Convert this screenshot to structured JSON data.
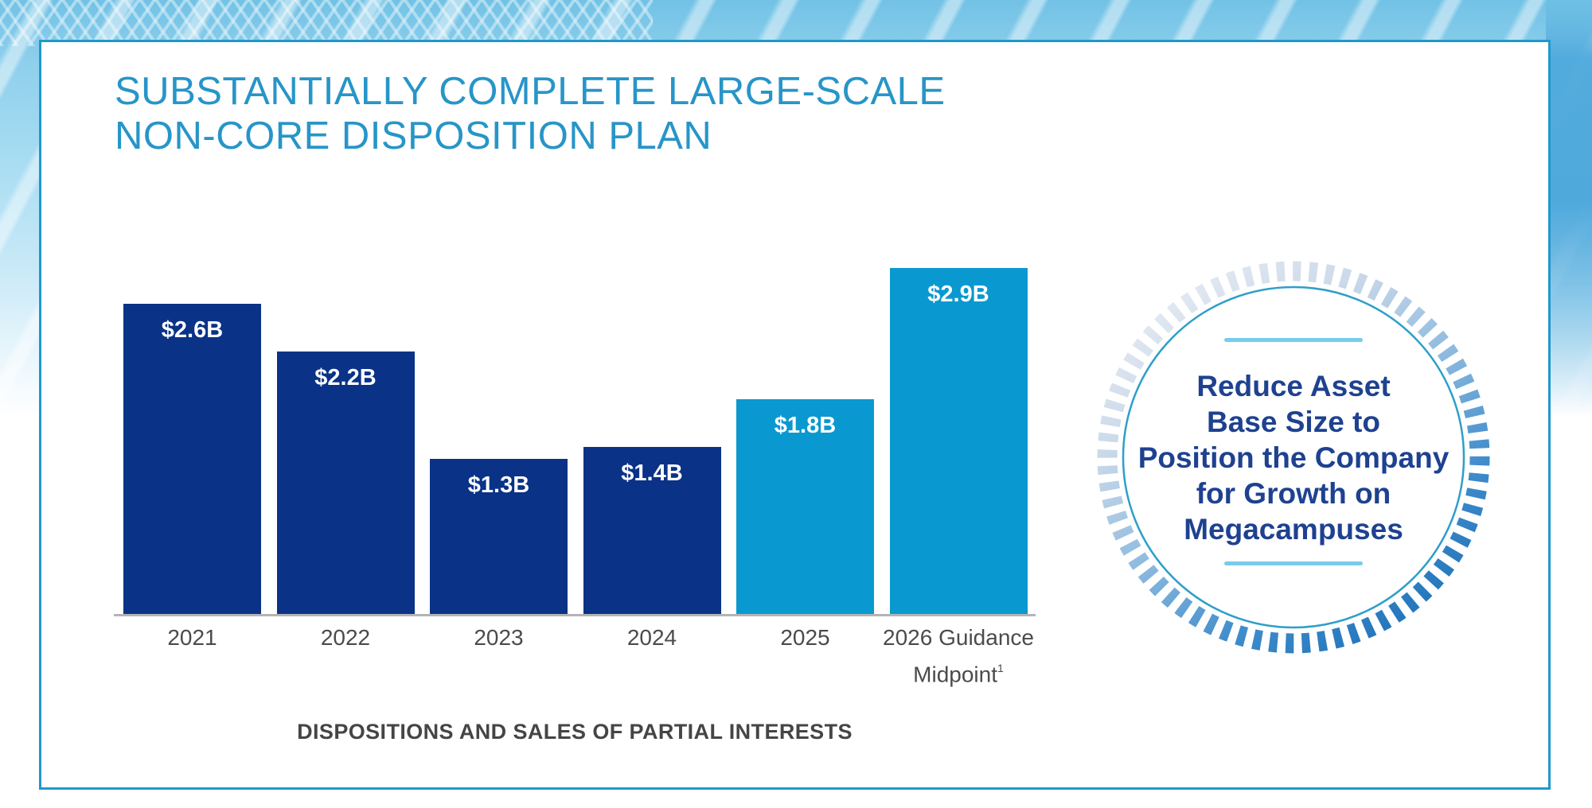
{
  "slide": {
    "title": {
      "line1": "SUBSTANTIALLY COMPLETE LARGE-SCALE",
      "line2": "NON-CORE DISPOSITION PLAN"
    },
    "caption": "DISPOSITIONS AND SALES OF PARTIAL INTERESTS"
  },
  "chart_data": {
    "type": "bar",
    "title": "",
    "xlabel": "DISPOSITIONS AND SALES OF PARTIAL INTERESTS",
    "ylabel": "",
    "ylim": [
      0,
      3.0
    ],
    "grid": false,
    "legend_position": "none",
    "categories": [
      {
        "lines": [
          "2021"
        ]
      },
      {
        "lines": [
          "2022"
        ]
      },
      {
        "lines": [
          "2023"
        ]
      },
      {
        "lines": [
          "2024"
        ]
      },
      {
        "lines": [
          "2025"
        ]
      },
      {
        "lines": [
          "2026 Guidance",
          "Midpoint"
        ],
        "footnote_sup": "1"
      }
    ],
    "values": [
      2.6,
      2.2,
      1.3,
      1.4,
      1.8,
      2.9
    ],
    "bar_labels": [
      "$2.6B",
      "$2.2B",
      "$1.3B",
      "$1.4B",
      "$1.8B",
      "$2.9B"
    ],
    "bar_colors": [
      "#0A3287",
      "#0A3287",
      "#0A3287",
      "#0A3287",
      "#0999D0",
      "#0999D0"
    ]
  },
  "callout": {
    "lines": [
      "Reduce Asset",
      "Base Size to",
      "Position the Company",
      "for Growth on",
      "Megacampuses"
    ]
  },
  "colors": {
    "navy_bar": "#0A3287",
    "sky_bar": "#0999D0",
    "title_blue": "#2795C8",
    "callout_navy": "#1E4190",
    "divider_blue": "#79CBEC",
    "card_border": "#2098CC",
    "axis_gray": "#B4B4B6",
    "label_gray": "#4B4B4D",
    "caption_gray": "#454547",
    "bar_label_white": "#FFFFFF",
    "ring_light": "#E8EDF3",
    "ring_mid": "#8FBBDF",
    "ring_deep": "#1B6FB7"
  }
}
